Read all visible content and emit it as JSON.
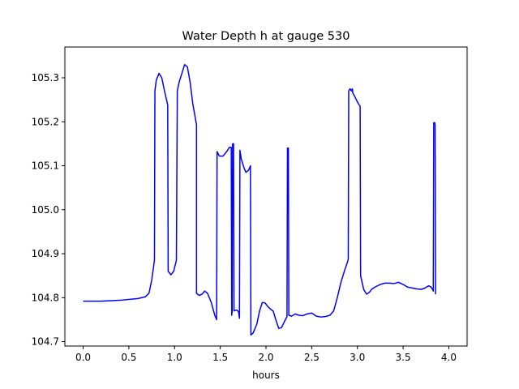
{
  "chart_data": {
    "type": "line",
    "title": "Water Depth h at gauge 530",
    "xlabel": "hours",
    "ylabel": "",
    "xlim": [
      -0.2,
      4.2
    ],
    "ylim": [
      104.69,
      105.37
    ],
    "xticks": [
      0.0,
      0.5,
      1.0,
      1.5,
      2.0,
      2.5,
      3.0,
      3.5,
      4.0
    ],
    "xtick_labels": [
      "0.0",
      "0.5",
      "1.0",
      "1.5",
      "2.0",
      "2.5",
      "3.0",
      "3.5",
      "4.0"
    ],
    "yticks": [
      104.7,
      104.8,
      104.9,
      105.0,
      105.1,
      105.2,
      105.3
    ],
    "ytick_labels": [
      "104.7",
      "104.8",
      "104.9",
      "105.0",
      "105.1",
      "105.2",
      "105.3"
    ],
    "grid": false,
    "series": [
      {
        "color": "#0000ff",
        "points": [
          [
            0.0,
            104.792
          ],
          [
            0.2,
            104.792
          ],
          [
            0.4,
            104.794
          ],
          [
            0.6,
            104.798
          ],
          [
            0.68,
            104.802
          ],
          [
            0.72,
            104.81
          ],
          [
            0.75,
            104.84
          ],
          [
            0.78,
            104.885
          ],
          [
            0.785,
            105.27
          ],
          [
            0.8,
            105.295
          ],
          [
            0.83,
            105.31
          ],
          [
            0.86,
            105.3
          ],
          [
            0.89,
            105.27
          ],
          [
            0.925,
            105.238
          ],
          [
            0.93,
            104.86
          ],
          [
            0.96,
            104.852
          ],
          [
            0.99,
            104.86
          ],
          [
            1.02,
            104.885
          ],
          [
            1.03,
            105.27
          ],
          [
            1.05,
            105.29
          ],
          [
            1.08,
            105.31
          ],
          [
            1.11,
            105.33
          ],
          [
            1.14,
            105.325
          ],
          [
            1.17,
            105.29
          ],
          [
            1.2,
            105.24
          ],
          [
            1.24,
            105.193
          ],
          [
            1.24,
            104.81
          ],
          [
            1.27,
            104.805
          ],
          [
            1.3,
            104.808
          ],
          [
            1.33,
            104.815
          ],
          [
            1.36,
            104.81
          ],
          [
            1.4,
            104.79
          ],
          [
            1.44,
            104.76
          ],
          [
            1.46,
            104.75
          ],
          [
            1.465,
            105.132
          ],
          [
            1.49,
            105.122
          ],
          [
            1.53,
            105.122
          ],
          [
            1.57,
            105.132
          ],
          [
            1.6,
            105.142
          ],
          [
            1.62,
            105.142
          ],
          [
            1.625,
            104.76
          ],
          [
            1.63,
            104.77
          ],
          [
            1.635,
            105.15
          ],
          [
            1.645,
            105.15
          ],
          [
            1.65,
            104.77
          ],
          [
            1.68,
            104.772
          ],
          [
            1.7,
            104.768
          ],
          [
            1.71,
            104.753
          ],
          [
            1.715,
            105.135
          ],
          [
            1.73,
            105.115
          ],
          [
            1.76,
            105.095
          ],
          [
            1.78,
            105.085
          ],
          [
            1.81,
            105.09
          ],
          [
            1.83,
            105.1
          ],
          [
            1.835,
            104.715
          ],
          [
            1.86,
            104.72
          ],
          [
            1.9,
            104.74
          ],
          [
            1.93,
            104.77
          ],
          [
            1.96,
            104.789
          ],
          [
            1.99,
            104.788
          ],
          [
            2.02,
            104.78
          ],
          [
            2.05,
            104.774
          ],
          [
            2.08,
            104.769
          ],
          [
            2.11,
            104.748
          ],
          [
            2.14,
            104.73
          ],
          [
            2.17,
            104.732
          ],
          [
            2.2,
            104.745
          ],
          [
            2.23,
            104.757
          ],
          [
            2.235,
            105.14
          ],
          [
            2.245,
            105.14
          ],
          [
            2.25,
            104.76
          ],
          [
            2.28,
            104.758
          ],
          [
            2.32,
            104.763
          ],
          [
            2.36,
            104.76
          ],
          [
            2.4,
            104.759
          ],
          [
            2.45,
            104.763
          ],
          [
            2.5,
            104.765
          ],
          [
            2.55,
            104.758
          ],
          [
            2.6,
            104.756
          ],
          [
            2.65,
            104.757
          ],
          [
            2.7,
            104.76
          ],
          [
            2.74,
            104.77
          ],
          [
            2.78,
            104.8
          ],
          [
            2.82,
            104.835
          ],
          [
            2.86,
            104.862
          ],
          [
            2.89,
            104.88
          ],
          [
            2.9,
            104.888
          ],
          [
            2.905,
            105.27
          ],
          [
            2.92,
            105.275
          ],
          [
            2.935,
            105.27
          ],
          [
            2.945,
            105.275
          ],
          [
            2.95,
            105.265
          ],
          [
            2.97,
            105.258
          ],
          [
            3.0,
            105.245
          ],
          [
            3.03,
            105.235
          ],
          [
            3.035,
            104.85
          ],
          [
            3.07,
            104.818
          ],
          [
            3.1,
            104.808
          ],
          [
            3.13,
            104.812
          ],
          [
            3.16,
            104.82
          ],
          [
            3.2,
            104.825
          ],
          [
            3.25,
            104.83
          ],
          [
            3.3,
            104.833
          ],
          [
            3.35,
            104.833
          ],
          [
            3.4,
            104.832
          ],
          [
            3.45,
            104.835
          ],
          [
            3.5,
            104.83
          ],
          [
            3.55,
            104.824
          ],
          [
            3.6,
            104.822
          ],
          [
            3.65,
            104.82
          ],
          [
            3.7,
            104.819
          ],
          [
            3.74,
            104.822
          ],
          [
            3.78,
            104.827
          ],
          [
            3.8,
            104.825
          ],
          [
            3.82,
            104.82
          ],
          [
            3.83,
            104.815
          ],
          [
            3.835,
            105.198
          ],
          [
            3.845,
            105.198
          ],
          [
            3.85,
            105.193
          ],
          [
            3.855,
            104.808
          ]
        ]
      }
    ]
  }
}
